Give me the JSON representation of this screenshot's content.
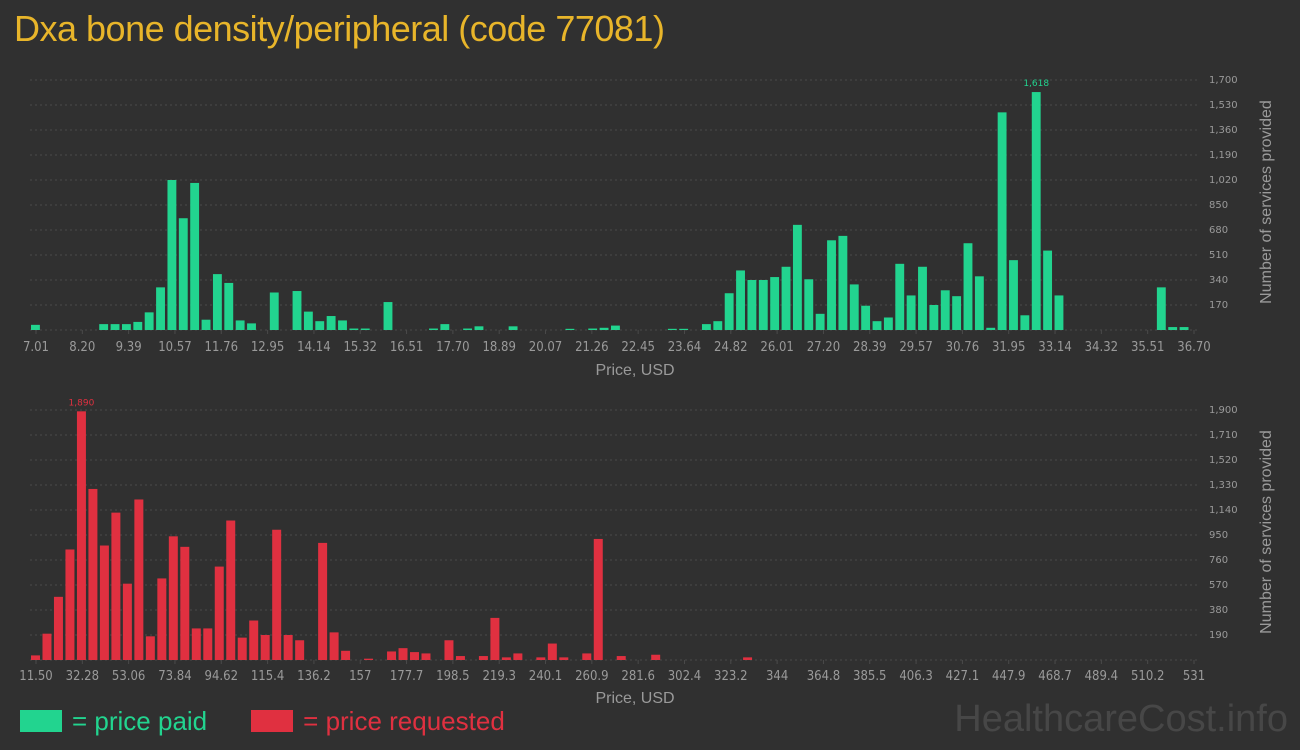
{
  "title": "Dxa bone density/peripheral (code 77081)",
  "colors": {
    "background": "#303030",
    "title": "#e8b52a",
    "paid": "#22d48f",
    "requested": "#e03040",
    "grid": "#4a4a4a",
    "text": "#9a9a9a"
  },
  "legend": [
    {
      "label": "= price paid",
      "color": "#22d48f"
    },
    {
      "label": "= price requested",
      "color": "#e03040"
    }
  ],
  "watermark": "HealthcareCost.info",
  "chart_data": [
    {
      "type": "bar",
      "name": "price paid",
      "color": "#22d48f",
      "xlabel": "Price, USD",
      "ylabel": "Number of services provided",
      "ylim": [
        0,
        1700
      ],
      "yticks": [
        170,
        340,
        510,
        680,
        850,
        1020,
        1190,
        1360,
        1530,
        1700
      ],
      "xticks": [
        "7.01",
        "8.20",
        "9.39",
        "10.57",
        "11.76",
        "12.95",
        "14.14",
        "15.32",
        "16.51",
        "17.70",
        "18.89",
        "20.07",
        "21.26",
        "22.45",
        "23.64",
        "24.82",
        "26.01",
        "27.20",
        "28.39",
        "29.57",
        "30.76",
        "31.95",
        "33.14",
        "34.32",
        "35.51",
        "36.70"
      ],
      "max_label": "1,618",
      "values": [
        35,
        0,
        0,
        0,
        0,
        0,
        40,
        40,
        40,
        55,
        120,
        290,
        1020,
        760,
        1000,
        70,
        380,
        320,
        65,
        45,
        0,
        255,
        0,
        265,
        125,
        60,
        95,
        65,
        10,
        10,
        0,
        190,
        0,
        0,
        0,
        10,
        40,
        0,
        10,
        25,
        0,
        0,
        25,
        0,
        0,
        0,
        0,
        8,
        0,
        10,
        15,
        30,
        0,
        0,
        0,
        0,
        8,
        8,
        0,
        40,
        60,
        250,
        405,
        340,
        340,
        360,
        430,
        715,
        345,
        110,
        610,
        640,
        310,
        165,
        60,
        85,
        450,
        235,
        430,
        170,
        270,
        230,
        590,
        365,
        15,
        1480,
        475,
        100,
        1618,
        540,
        235,
        0,
        0,
        0,
        0,
        0,
        0,
        0,
        0,
        290,
        20,
        20
      ]
    },
    {
      "type": "bar",
      "name": "price requested",
      "color": "#e03040",
      "xlabel": "Price, USD",
      "ylabel": "Number of services provided",
      "ylim": [
        0,
        1900
      ],
      "yticks": [
        190,
        380,
        570,
        760,
        950,
        1140,
        1330,
        1520,
        1710,
        1900
      ],
      "xticks": [
        "11.50",
        "32.28",
        "53.06",
        "73.84",
        "94.62",
        "115.4",
        "136.2",
        "157",
        "177.7",
        "198.5",
        "219.3",
        "240.1",
        "260.9",
        "281.6",
        "302.4",
        "323.2",
        "344",
        "364.8",
        "385.5",
        "406.3",
        "427.1",
        "447.9",
        "468.7",
        "489.4",
        "510.2",
        "531"
      ],
      "max_label": "1,890",
      "values": [
        35,
        200,
        480,
        840,
        1890,
        1300,
        870,
        1120,
        580,
        1220,
        180,
        620,
        940,
        860,
        240,
        240,
        710,
        1060,
        170,
        300,
        190,
        990,
        190,
        150,
        0,
        890,
        210,
        70,
        0,
        10,
        0,
        65,
        90,
        60,
        50,
        0,
        150,
        30,
        0,
        30,
        320,
        20,
        50,
        0,
        20,
        125,
        20,
        0,
        50,
        920,
        0,
        30,
        0,
        0,
        40,
        0,
        0,
        0,
        0,
        0,
        0,
        0,
        20,
        0,
        0,
        0,
        0,
        0,
        0,
        0,
        0,
        0,
        0,
        0,
        0,
        0,
        0,
        0,
        0,
        0,
        0,
        0,
        0,
        0,
        0,
        0,
        0,
        0,
        0,
        0,
        0,
        0,
        0,
        0,
        0,
        0,
        0,
        0,
        0,
        0,
        0
      ]
    }
  ]
}
